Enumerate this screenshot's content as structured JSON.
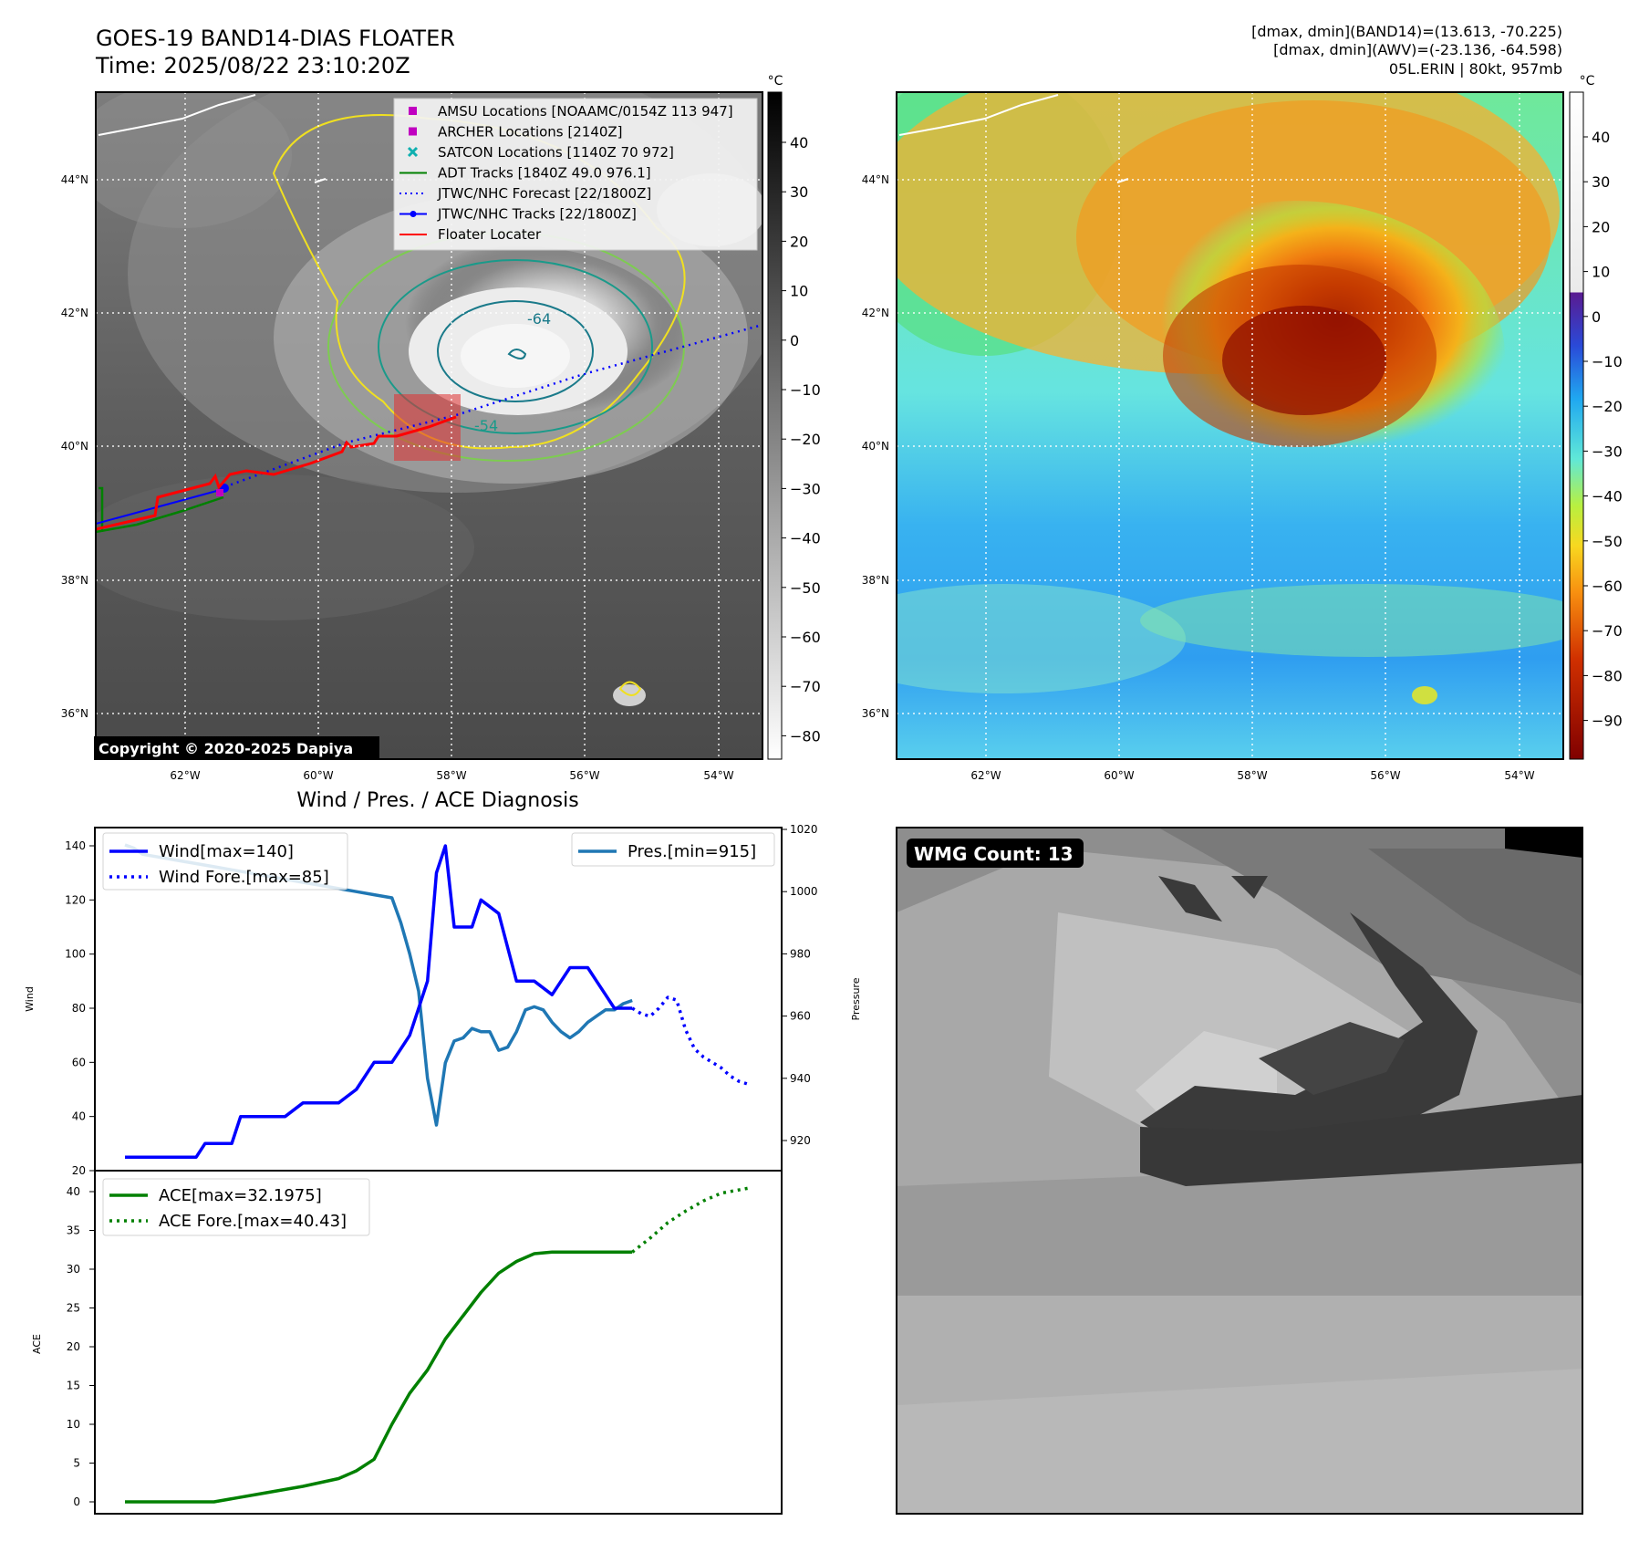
{
  "header": {
    "title": "GOES-19 BAND14-DIAS FLOATER",
    "time": "Time: 2025/08/22 23:10:20Z",
    "stats_band14": "[dmax, dmin](BAND14)=(13.613, -70.225)",
    "stats_awv": "[dmax, dmin](AWV)=(-23.136, -64.598)",
    "storm": "05L.ERIN | 80kt, 957mb"
  },
  "maps": {
    "lat_labels": [
      "44°N",
      "42°N",
      "40°N",
      "38°N",
      "36°N"
    ],
    "lon_labels": [
      "62°W",
      "60°W",
      "58°W",
      "56°W",
      "54°W"
    ],
    "copyright": "Copyright © 2020-2025 Dapiya",
    "contour_label_outer": "-54",
    "contour_label_inner": "-64",
    "legend": [
      {
        "label": "AMSU Locations [NOAAMC/0154Z 113 947]",
        "marker": "square",
        "color": "#c000c0"
      },
      {
        "label": "ARCHER Locations [2140Z]",
        "marker": "square",
        "color": "#c000c0"
      },
      {
        "label": "SATCON Locations [1140Z 70 972]",
        "marker": "x",
        "color": "#10b0b0"
      },
      {
        "label": "ADT Tracks [1840Z 49.0 976.1]",
        "marker": "line",
        "color": "#008000"
      },
      {
        "label": "JTWC/NHC Forecast [22/1800Z]",
        "marker": "dotted",
        "color": "#0000ff"
      },
      {
        "label": "JTWC/NHC Tracks [22/1800Z]",
        "marker": "line-dot",
        "color": "#0000ff"
      },
      {
        "label": "Floater Locater",
        "marker": "line",
        "color": "#ff0000"
      }
    ],
    "colorbar_unit": "°C",
    "colorbar_gray_ticks": [
      "40",
      "30",
      "20",
      "10",
      "0",
      "−10",
      "−20",
      "−30",
      "−40",
      "−50",
      "−60",
      "−70",
      "−80"
    ],
    "colorbar_color_ticks": [
      "40",
      "30",
      "20",
      "10",
      "0",
      "−10",
      "−20",
      "−30",
      "−40",
      "−50",
      "−60",
      "−70",
      "−80",
      "−90"
    ]
  },
  "wmg": {
    "label": "WMG Count: 13"
  },
  "chart_data": [
    {
      "type": "line",
      "title": "Wind / Pres. / ACE Diagnosis",
      "ylabel": "Wind",
      "ylabel_right": "Pressure",
      "ylim": [
        20,
        140
      ],
      "ylim_right": [
        915,
        1020
      ],
      "yticks": [
        "20",
        "40",
        "60",
        "80",
        "100",
        "120",
        "140"
      ],
      "yticks_right": [
        "920",
        "940",
        "960",
        "980",
        "1000",
        "1020"
      ],
      "legend_left": [
        "Wind[max=140]",
        "Wind Fore.[max=85]"
      ],
      "legend_right": [
        "Pres.[min=915]"
      ],
      "series": [
        {
          "name": "Wind[max=140]",
          "style": "solid",
          "color": "#0000ff",
          "x": [
            0,
            4,
            8,
            9,
            12,
            13,
            16,
            18,
            20,
            24,
            26,
            28,
            30,
            31,
            32,
            33,
            34,
            35,
            36,
            37,
            38,
            39,
            40,
            42,
            44,
            46,
            48,
            50,
            52,
            53,
            54,
            55,
            56,
            57
          ],
          "y": [
            25,
            25,
            25,
            30,
            30,
            40,
            40,
            40,
            45,
            45,
            50,
            60,
            60,
            65,
            70,
            80,
            90,
            130,
            140,
            110,
            110,
            110,
            120,
            115,
            90,
            90,
            85,
            95,
            95,
            90,
            85,
            80,
            80,
            80
          ]
        },
        {
          "name": "Wind Fore.[max=85]",
          "style": "dotted",
          "color": "#0000ff",
          "x": [
            57,
            58,
            59,
            60,
            61,
            62,
            63,
            64,
            65,
            66,
            67,
            68,
            69,
            70
          ],
          "y": [
            80,
            78,
            77,
            80,
            84,
            83,
            72,
            65,
            62,
            60,
            58,
            55,
            53,
            52
          ]
        },
        {
          "name": "Pres.[min=915]",
          "style": "solid",
          "color": "#1f77b4",
          "axis": "right",
          "x": [
            0,
            1,
            2,
            4,
            6,
            8,
            10,
            12,
            14,
            16,
            18,
            20,
            22,
            24,
            26,
            28,
            30,
            31,
            32,
            33,
            34,
            35,
            36,
            37,
            38,
            39,
            40,
            41,
            42,
            43,
            44,
            45,
            46,
            47,
            48,
            49,
            50,
            51,
            52,
            53,
            54,
            55,
            56,
            57
          ],
          "y": [
            1015,
            1014,
            1012,
            1011,
            1010,
            1009,
            1008,
            1007,
            1006,
            1005,
            1004,
            1003,
            1002,
            1001,
            1000,
            999,
            998,
            990,
            980,
            968,
            940,
            925,
            945,
            952,
            953,
            956,
            955,
            955,
            949,
            950,
            955,
            962,
            963,
            962,
            958,
            955,
            953,
            955,
            958,
            960,
            962,
            962,
            964,
            965
          ]
        }
      ]
    },
    {
      "type": "line",
      "ylabel": "ACE",
      "ylim": [
        0,
        40
      ],
      "yticks": [
        "0",
        "5",
        "10",
        "15",
        "20",
        "25",
        "30",
        "35",
        "40"
      ],
      "legend": [
        "ACE[max=32.1975]",
        "ACE Fore.[max=40.43]"
      ],
      "series": [
        {
          "name": "ACE[max=32.1975]",
          "style": "solid",
          "color": "#008000",
          "x": [
            0,
            5,
            10,
            15,
            20,
            24,
            26,
            28,
            30,
            32,
            34,
            36,
            38,
            40,
            42,
            44,
            46,
            48,
            50,
            52,
            54,
            56,
            57
          ],
          "y": [
            0,
            0,
            0,
            1,
            2,
            3,
            4,
            5.5,
            10,
            14,
            17,
            21,
            24,
            27,
            29.5,
            31,
            32,
            32.2,
            32.2,
            32.2,
            32.2,
            32.2,
            32.2
          ]
        },
        {
          "name": "ACE Fore.[max=40.43]",
          "style": "dotted",
          "color": "#008000",
          "x": [
            57,
            59,
            61,
            63,
            65,
            67,
            70
          ],
          "y": [
            32.2,
            34,
            36,
            37.5,
            38.8,
            39.8,
            40.43
          ]
        }
      ]
    }
  ]
}
